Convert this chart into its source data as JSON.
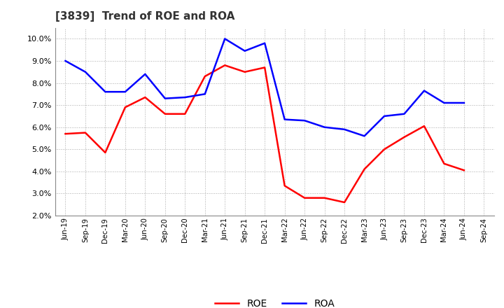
{
  "title": "[3839]  Trend of ROE and ROA",
  "labels": [
    "Jun-19",
    "Sep-19",
    "Dec-19",
    "Mar-20",
    "Jun-20",
    "Sep-20",
    "Dec-20",
    "Mar-21",
    "Jun-21",
    "Sep-21",
    "Dec-21",
    "Mar-22",
    "Jun-22",
    "Sep-22",
    "Dec-22",
    "Mar-23",
    "Jun-23",
    "Sep-23",
    "Dec-23",
    "Mar-24",
    "Jun-24",
    "Sep-24"
  ],
  "ROE": [
    5.7,
    5.75,
    4.85,
    6.9,
    7.35,
    6.6,
    6.6,
    8.3,
    8.8,
    8.5,
    8.7,
    3.35,
    2.8,
    2.8,
    2.6,
    4.1,
    5.0,
    5.55,
    6.05,
    4.35,
    4.05,
    null
  ],
  "ROA": [
    9.0,
    8.5,
    7.6,
    7.6,
    8.4,
    7.3,
    7.35,
    7.5,
    10.0,
    9.45,
    9.8,
    6.35,
    6.3,
    6.0,
    5.9,
    5.6,
    6.5,
    6.6,
    7.65,
    7.1,
    7.1,
    null
  ],
  "roe_color": "#FF0000",
  "roa_color": "#0000FF",
  "ylim": [
    2.0,
    10.5
  ],
  "yticks": [
    2.0,
    3.0,
    4.0,
    5.0,
    6.0,
    7.0,
    8.0,
    9.0,
    10.0
  ],
  "background_color": "#FFFFFF",
  "grid_color": "#AAAAAA",
  "title_fontsize": 11,
  "line_width": 1.8
}
